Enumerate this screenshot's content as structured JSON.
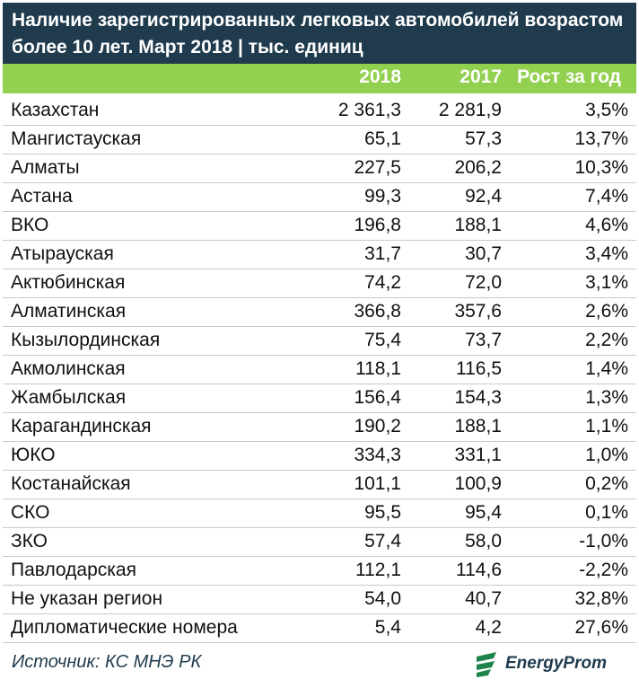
{
  "title": {
    "line1": "Наличие зарегистрированных легковых автомобилей возрастом",
    "line2": "более 10 лет. Март 2018 | тыс. единиц"
  },
  "header": {
    "col_2018": "2018",
    "col_2017": "2017",
    "col_growth": "Рост за год"
  },
  "colors": {
    "title_bg": "#1f3b4d",
    "header_bg": "#92d050",
    "logo_green": "#1e8449"
  },
  "chart_data": {
    "type": "table",
    "title": "Наличие зарегистрированных легковых автомобилей возрастом более 10 лет. Март 2018 | тыс. единиц",
    "columns": [
      "",
      "2018",
      "2017",
      "Рост за год"
    ],
    "rows": [
      {
        "name": "Казахстан",
        "v2018": "2 361,3",
        "v2017": "2 281,9",
        "growth": "3,5%"
      },
      {
        "name": "Мангистауская",
        "v2018": "65,1",
        "v2017": "57,3",
        "growth": "13,7%"
      },
      {
        "name": "Алматы",
        "v2018": "227,5",
        "v2017": "206,2",
        "growth": "10,3%"
      },
      {
        "name": "Астана",
        "v2018": "99,3",
        "v2017": "92,4",
        "growth": "7,4%"
      },
      {
        "name": "ВКО",
        "v2018": "196,8",
        "v2017": "188,1",
        "growth": "4,6%"
      },
      {
        "name": "Атырауская",
        "v2018": "31,7",
        "v2017": "30,7",
        "growth": "3,4%"
      },
      {
        "name": "Актюбинская",
        "v2018": "74,2",
        "v2017": "72,0",
        "growth": "3,1%"
      },
      {
        "name": "Алматинская",
        "v2018": "366,8",
        "v2017": "357,6",
        "growth": "2,6%"
      },
      {
        "name": "Кызылординская",
        "v2018": "75,4",
        "v2017": "73,7",
        "growth": "2,2%"
      },
      {
        "name": "Акмолинская",
        "v2018": "118,1",
        "v2017": "116,5",
        "growth": "1,4%"
      },
      {
        "name": "Жамбылская",
        "v2018": "156,4",
        "v2017": "154,3",
        "growth": "1,3%"
      },
      {
        "name": "Карагандинская",
        "v2018": "190,2",
        "v2017": "188,1",
        "growth": "1,1%"
      },
      {
        "name": "ЮКО",
        "v2018": "334,3",
        "v2017": "331,1",
        "growth": "1,0%"
      },
      {
        "name": "Костанайская",
        "v2018": "101,1",
        "v2017": "100,9",
        "growth": "0,2%"
      },
      {
        "name": "СКО",
        "v2018": "95,5",
        "v2017": "95,4",
        "growth": "0,1%"
      },
      {
        "name": "ЗКО",
        "v2018": "57,4",
        "v2017": "58,0",
        "growth": "-1,0%"
      },
      {
        "name": "Павлодарская",
        "v2018": "112,1",
        "v2017": "114,6",
        "growth": "-2,2%"
      },
      {
        "name": "Не указан регион",
        "v2018": "54,0",
        "v2017": "40,7",
        "growth": "32,8%"
      },
      {
        "name": "Дипломатические номера",
        "v2018": "5,4",
        "v2017": "4,2",
        "growth": "27,6%"
      }
    ]
  },
  "footer": {
    "source": "Источник: КС МНЭ РК",
    "logo_text": "EnergyProm",
    "logo_icon": "energyprom-logo-icon"
  }
}
